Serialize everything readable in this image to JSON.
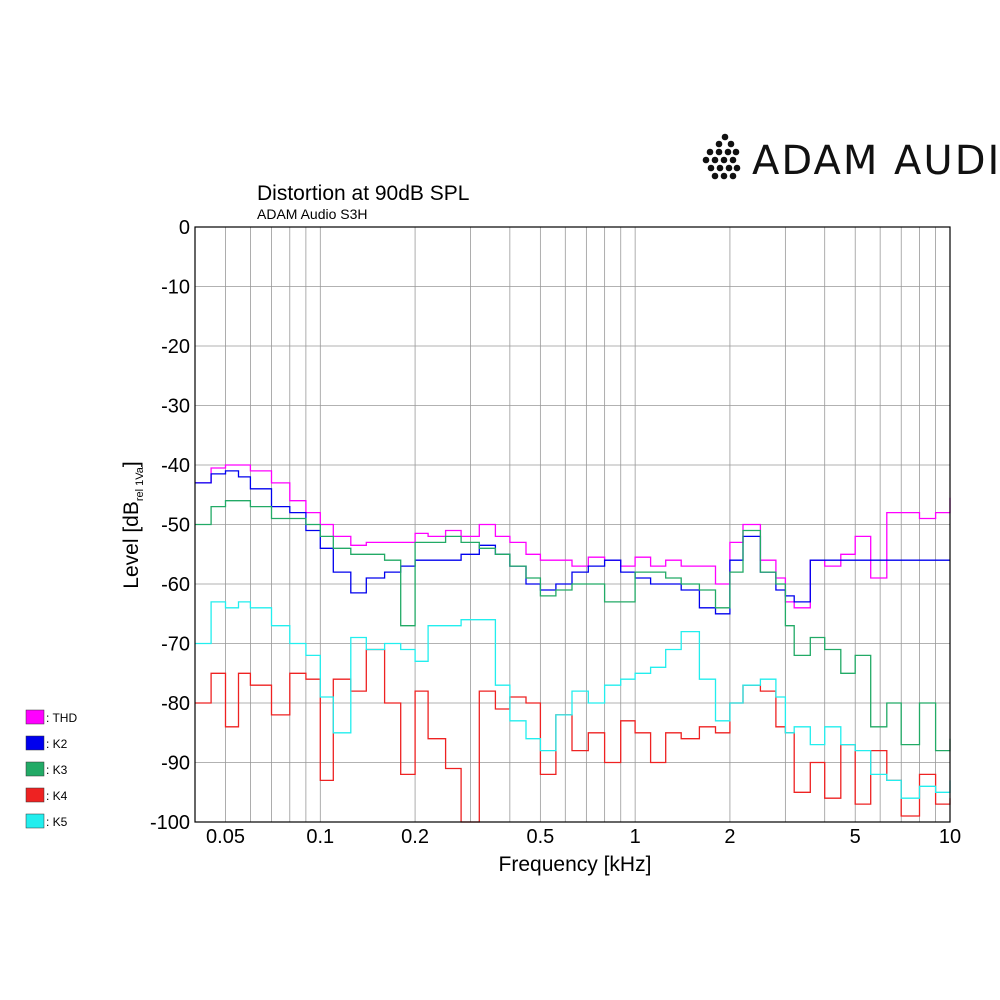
{
  "brand": {
    "name": "ADAM AUDIO",
    "logo_icon": "adam-audio-dot-logo-icon"
  },
  "chart_data": {
    "type": "line",
    "title": "Distortion at 90dB SPL",
    "subtitle": "ADAM Audio S3H",
    "xlabel": "Frequency [kHz]",
    "ylabel": "Level [dB",
    "ylabel_sub": "rel 1Va",
    "ylabel_end": "]",
    "x_scale": "log",
    "xlim": [
      0.04,
      10
    ],
    "ylim": [
      -100,
      0
    ],
    "grid": true,
    "legend_position": "left, below plot",
    "xticks": [
      {
        "v": 0.05,
        "label": "0.05"
      },
      {
        "v": 0.1,
        "label": "0.1"
      },
      {
        "v": 0.2,
        "label": "0.2"
      },
      {
        "v": 0.5,
        "label": "0.5"
      },
      {
        "v": 1,
        "label": "1"
      },
      {
        "v": 2,
        "label": "2"
      },
      {
        "v": 5,
        "label": "5"
      },
      {
        "v": 10,
        "label": "10"
      }
    ],
    "yticks": [
      {
        "v": 0,
        "label": "0"
      },
      {
        "v": -10,
        "label": "-10"
      },
      {
        "v": -20,
        "label": "-20"
      },
      {
        "v": -30,
        "label": "-30"
      },
      {
        "v": -40,
        "label": "-40"
      },
      {
        "v": -50,
        "label": "-50"
      },
      {
        "v": -60,
        "label": "-60"
      },
      {
        "v": -70,
        "label": "-70"
      },
      {
        "v": -80,
        "label": "-80"
      },
      {
        "v": -90,
        "label": "-90"
      },
      {
        "v": -100,
        "label": "-100"
      }
    ],
    "series": [
      {
        "name": ": THD",
        "color": "#ff00ff",
        "x": [
          0.04,
          0.045,
          0.05,
          0.055,
          0.06,
          0.07,
          0.08,
          0.09,
          0.1,
          0.11,
          0.125,
          0.14,
          0.16,
          0.18,
          0.2,
          0.22,
          0.25,
          0.28,
          0.32,
          0.36,
          0.4,
          0.45,
          0.5,
          0.56,
          0.63,
          0.71,
          0.8,
          0.9,
          1,
          1.12,
          1.25,
          1.4,
          1.6,
          1.8,
          2,
          2.2,
          2.5,
          2.8,
          3,
          3.2,
          3.6,
          4,
          4.5,
          5,
          5.6,
          6.3,
          7,
          8,
          9,
          10
        ],
        "y": [
          -43,
          -40.5,
          -40,
          -40,
          -41,
          -43,
          -46,
          -48,
          -50,
          -52,
          -53.5,
          -53,
          -53,
          -53,
          -51.5,
          -52,
          -51,
          -52,
          -50,
          -52,
          -53,
          -55,
          -56,
          -56,
          -57,
          -55.5,
          -56,
          -57,
          -55.5,
          -57,
          -56,
          -57,
          -57,
          -60,
          -53,
          -50,
          -56,
          -59,
          -63,
          -64,
          -56,
          -57,
          -55,
          -52,
          -59,
          -48,
          -48,
          -49,
          -48,
          -45.5
        ]
      },
      {
        "name": ": K2",
        "color": "#0000ee",
        "x": [
          0.04,
          0.045,
          0.05,
          0.055,
          0.06,
          0.07,
          0.08,
          0.09,
          0.1,
          0.11,
          0.125,
          0.14,
          0.16,
          0.18,
          0.2,
          0.22,
          0.25,
          0.28,
          0.32,
          0.36,
          0.4,
          0.45,
          0.5,
          0.56,
          0.63,
          0.71,
          0.8,
          0.9,
          1,
          1.12,
          1.25,
          1.4,
          1.6,
          1.8,
          2,
          2.2,
          2.5,
          2.8,
          3,
          3.2,
          3.6,
          4
        ],
        "y": [
          -43,
          -41.5,
          -41,
          -42,
          -44,
          -47,
          -48,
          -51,
          -54,
          -58,
          -61.5,
          -59,
          -58,
          -57,
          -56,
          -56,
          -56,
          -55,
          -53.5,
          -55,
          -57,
          -60,
          -61,
          -60,
          -58,
          -57,
          -56,
          -58,
          -59,
          -60,
          -60,
          -61,
          -64,
          -65,
          -56,
          -52,
          -58,
          -61,
          -62,
          -63,
          -56,
          -56
        ]
      },
      {
        "name": ": K3",
        "color": "#22aa66",
        "x": [
          0.04,
          0.045,
          0.05,
          0.055,
          0.06,
          0.07,
          0.08,
          0.09,
          0.1,
          0.11,
          0.125,
          0.14,
          0.16,
          0.18,
          0.2,
          0.22,
          0.25,
          0.28,
          0.32,
          0.36,
          0.4,
          0.45,
          0.5,
          0.56,
          0.63,
          0.71,
          0.8,
          0.9,
          1,
          1.12,
          1.25,
          1.4,
          1.6,
          1.8,
          2,
          2.2,
          2.5,
          2.8,
          3,
          3.2,
          3.6,
          4,
          4.5,
          5,
          5.6,
          6.3,
          7,
          8,
          9,
          10
        ],
        "y": [
          -50,
          -47,
          -46,
          -46,
          -47,
          -49,
          -49,
          -50,
          -52,
          -54,
          -55,
          -55,
          -56,
          -67,
          -53,
          -53,
          -52,
          -53,
          -54,
          -55,
          -57,
          -59,
          -62,
          -61,
          -60,
          -60,
          -63,
          -63,
          -58,
          -58,
          -59,
          -60,
          -61,
          -64,
          -58,
          -51,
          -58,
          -60,
          -67,
          -72,
          -69,
          -71,
          -75,
          -72,
          -84,
          -80,
          -87,
          -80,
          -88,
          -86
        ]
      },
      {
        "name": ": K4",
        "color": "#ee2222",
        "x": [
          0.04,
          0.045,
          0.05,
          0.055,
          0.06,
          0.07,
          0.08,
          0.09,
          0.1,
          0.11,
          0.125,
          0.14,
          0.16,
          0.18,
          0.2,
          0.22,
          0.25,
          0.28,
          0.32,
          0.36,
          0.4,
          0.45,
          0.5,
          0.56,
          0.63,
          0.71,
          0.8,
          0.9,
          1,
          1.12,
          1.25,
          1.4,
          1.6,
          1.8,
          2,
          2.2,
          2.5,
          2.8,
          3,
          3.2,
          3.6,
          4,
          4.5,
          5,
          5.6,
          6.3,
          7,
          8,
          9,
          10
        ],
        "y": [
          -80,
          -75,
          -84,
          -75,
          -77,
          -82,
          -75,
          -76,
          -93,
          -76,
          -78,
          -71,
          -80,
          -92,
          -78,
          -86,
          -91,
          -100,
          -78,
          -81,
          -79,
          -80,
          -92,
          -82,
          -88,
          -85,
          -90,
          -83,
          -85,
          -90,
          -85,
          -86,
          -84,
          -85,
          -80,
          -77,
          -78,
          -84,
          -85,
          -95,
          -90,
          -96,
          -87,
          -97,
          -88,
          -93,
          -99,
          -92,
          -97,
          -96
        ]
      },
      {
        "name": ": K5",
        "color": "#22eeee",
        "x": [
          0.04,
          0.045,
          0.05,
          0.055,
          0.06,
          0.07,
          0.08,
          0.09,
          0.1,
          0.11,
          0.125,
          0.14,
          0.16,
          0.18,
          0.2,
          0.22,
          0.25,
          0.28,
          0.32,
          0.36,
          0.4,
          0.45,
          0.5,
          0.56,
          0.63,
          0.71,
          0.8,
          0.9,
          1,
          1.12,
          1.25,
          1.4,
          1.6,
          1.8,
          2,
          2.2,
          2.5,
          2.8,
          3,
          3.2,
          3.6,
          4,
          4.5,
          5,
          5.6,
          6.3,
          7,
          8,
          9,
          10
        ],
        "y": [
          -70,
          -63,
          -64,
          -63,
          -64,
          -67,
          -70,
          -72,
          -79,
          -85,
          -69,
          -71,
          -70,
          -71,
          -73,
          -67,
          -67,
          -66,
          -66,
          -77,
          -83,
          -86,
          -88,
          -82,
          -78,
          -80,
          -77,
          -76,
          -75,
          -74,
          -71,
          -68,
          -76,
          -83,
          -80,
          -77,
          -76,
          -79,
          -85,
          -84,
          -87,
          -84,
          -87,
          -88,
          -92,
          -93,
          -96,
          -94,
          -95,
          -93
        ]
      }
    ]
  }
}
